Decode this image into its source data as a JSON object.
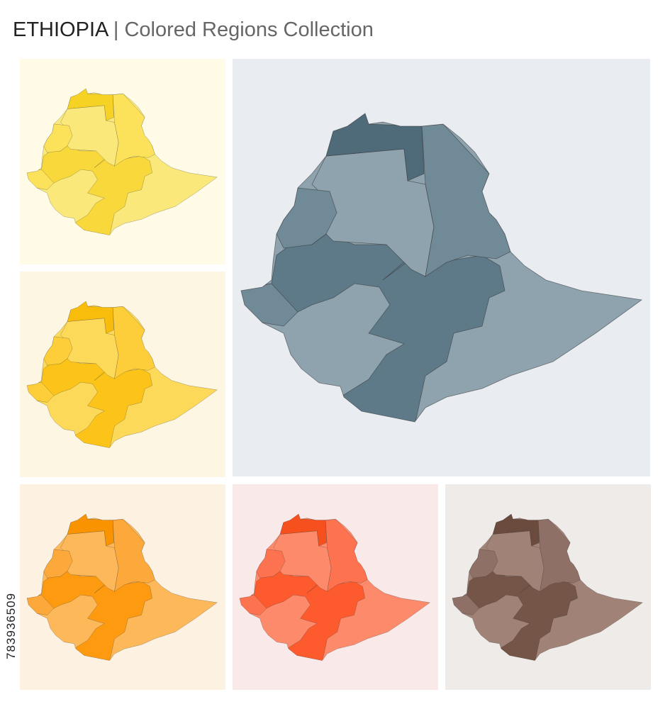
{
  "header": {
    "title": "ETHIOPIA",
    "separator": "|",
    "subtitle": "Colored Regions Collection"
  },
  "watermark_id": "783936509"
}
